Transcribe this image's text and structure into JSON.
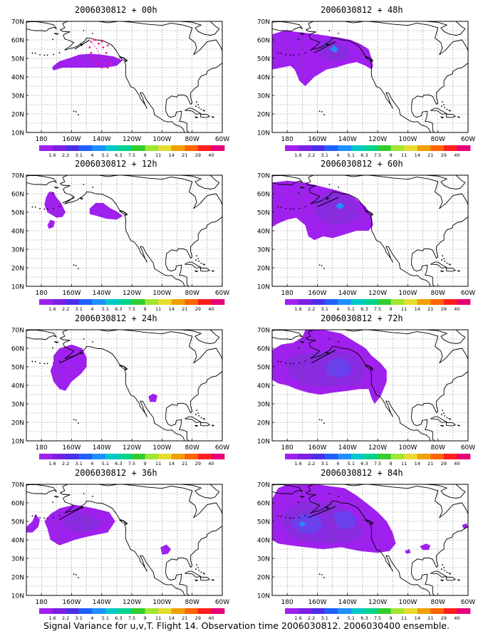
{
  "figure": {
    "caption": "Signal Variance for u,v,T. Flight 14. Observation time 2006030812. 2006030400 ensemble."
  },
  "axes": {
    "lat_labels": [
      "10N",
      "20N",
      "30N",
      "40N",
      "50N",
      "60N",
      "70N"
    ],
    "lon_labels": [
      "180",
      "160W",
      "140W",
      "120W",
      "100W",
      "80W",
      "60W"
    ],
    "lat_range": [
      10,
      70
    ],
    "lon_range": [
      -190,
      -60
    ]
  },
  "colorbar": {
    "labels": [
      "1.6",
      "2.2",
      "3.1",
      "4",
      "5.1",
      "6.3",
      "7.5",
      "9",
      "11",
      "14",
      "21",
      "29",
      "40"
    ],
    "colors": [
      "#a020f0",
      "#7b1fe0",
      "#4b2ee8",
      "#2060ff",
      "#1e90ff",
      "#00c8c8",
      "#00d28c",
      "#32cd32",
      "#a0e632",
      "#e6dc32",
      "#f0a000",
      "#ff6400",
      "#ff1e1e",
      "#e60078"
    ]
  },
  "map_colors": {
    "level1": "#a020f0",
    "level2": "#8a2be2",
    "level3": "#6a40f0",
    "level4": "#1e90ff",
    "flight_track": "#000000",
    "obs_dots": "#ff1493"
  },
  "panels": [
    {
      "title": "2006030812 + 00h"
    },
    {
      "title": "2006030812 + 12h"
    },
    {
      "title": "2006030812 + 24h"
    },
    {
      "title": "2006030812 + 36h"
    },
    {
      "title": "2006030812 + 48h"
    },
    {
      "title": "2006030812 + 60h"
    },
    {
      "title": "2006030812 + 72h"
    },
    {
      "title": "2006030812 + 84h"
    }
  ]
}
